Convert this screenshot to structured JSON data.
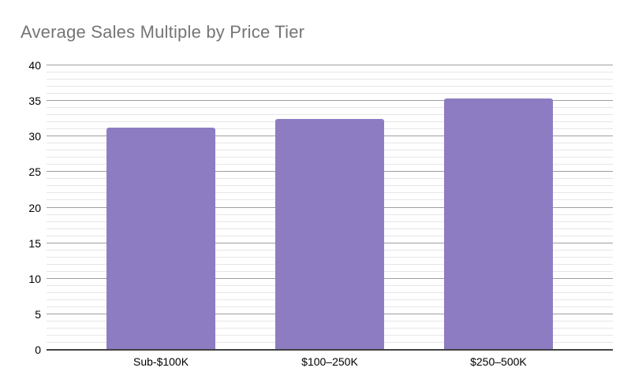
{
  "chart_data": {
    "type": "bar",
    "title": "Average Sales Multiple by Price Tier",
    "categories": [
      "Sub-$100K",
      "$100–250K",
      "$250–500K"
    ],
    "values": [
      31.3,
      32.5,
      35.4
    ],
    "xlabel": "",
    "ylabel": "",
    "ylim": [
      0,
      40
    ],
    "y_major_ticks": [
      0,
      5,
      10,
      15,
      20,
      25,
      30,
      35,
      40
    ],
    "y_minor_step": 1,
    "grid": "horizontal, major and minor, on",
    "legend": "none",
    "colors": {
      "bar": "#8e7cc3",
      "title": "#757575",
      "axis_line": "#424242",
      "major_gridline": "#9e9e9e",
      "minor_gridline": "#e6e6e6",
      "tick_label": "#000000",
      "background": "#ffffff"
    }
  }
}
